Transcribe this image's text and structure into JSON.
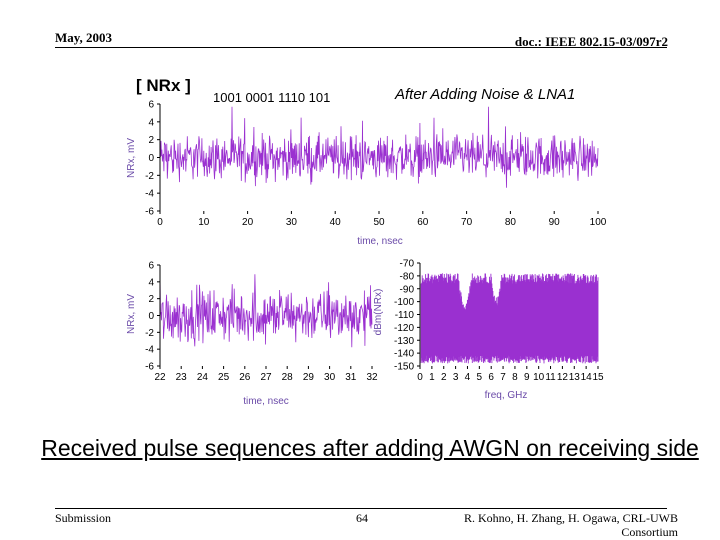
{
  "header": {
    "date": "May, 2003",
    "doc_id": "doc.: IEEE 802.15-03/097r2"
  },
  "caption": "Received pulse sequences after adding AWGN on receiving side",
  "footer": {
    "left": "Submission",
    "page": "64",
    "right_line1": "R. Kohno, H. Zhang, H. Ogawa, CRL-UWB",
    "right_line2": "Consortium"
  },
  "colors": {
    "trace": "#9a30d0",
    "axis": "#000000",
    "label": "#6a4aa8"
  },
  "chart_data": [
    {
      "type": "line",
      "panel_label": "[ NRx ]",
      "bit_sequence": "1001 0001 1110 101",
      "title": "After Adding Noise & LNA1",
      "xlabel": "time, nsec",
      "ylabel": "NRx, mV",
      "xlim": [
        0,
        100
      ],
      "ylim": [
        -6,
        6
      ],
      "x_ticks": [
        "0",
        "10",
        "20",
        "30",
        "40",
        "50",
        "60",
        "70",
        "80",
        "90",
        "100"
      ],
      "y_ticks": [
        "6",
        "4",
        "2",
        "0",
        "-2",
        "-4",
        "-6"
      ],
      "series": [
        {
          "name": "NRx",
          "description": "noisy pulse train"
        }
      ]
    },
    {
      "type": "line",
      "xlabel": "time, nsec",
      "ylabel": "NRx, mV",
      "xlim": [
        22,
        32
      ],
      "ylim": [
        -6,
        6
      ],
      "x_ticks": [
        "22",
        "23",
        "24",
        "25",
        "26",
        "27",
        "28",
        "29",
        "30",
        "31",
        "32"
      ],
      "y_ticks": [
        "6",
        "4",
        "2",
        "0",
        "-2",
        "-4",
        "-6"
      ],
      "series": [
        {
          "name": "NRx",
          "description": "zoomed noisy pulse train"
        }
      ]
    },
    {
      "type": "line",
      "xlabel": "freq, GHz",
      "ylabel": "dBm(NRx)",
      "xlim": [
        0,
        15
      ],
      "ylim": [
        -150,
        -70
      ],
      "x_ticks": [
        "0",
        "1",
        "2",
        "3",
        "4",
        "5",
        "6",
        "7",
        "8",
        "9",
        "10",
        "11",
        "12",
        "13",
        "14",
        "15"
      ],
      "y_ticks": [
        "-70",
        "-80",
        "-90",
        "-100",
        "-110",
        "-120",
        "-130",
        "-140",
        "-150"
      ],
      "series": [
        {
          "name": "dBm(NRx)",
          "description": "power spectrum"
        }
      ]
    }
  ]
}
